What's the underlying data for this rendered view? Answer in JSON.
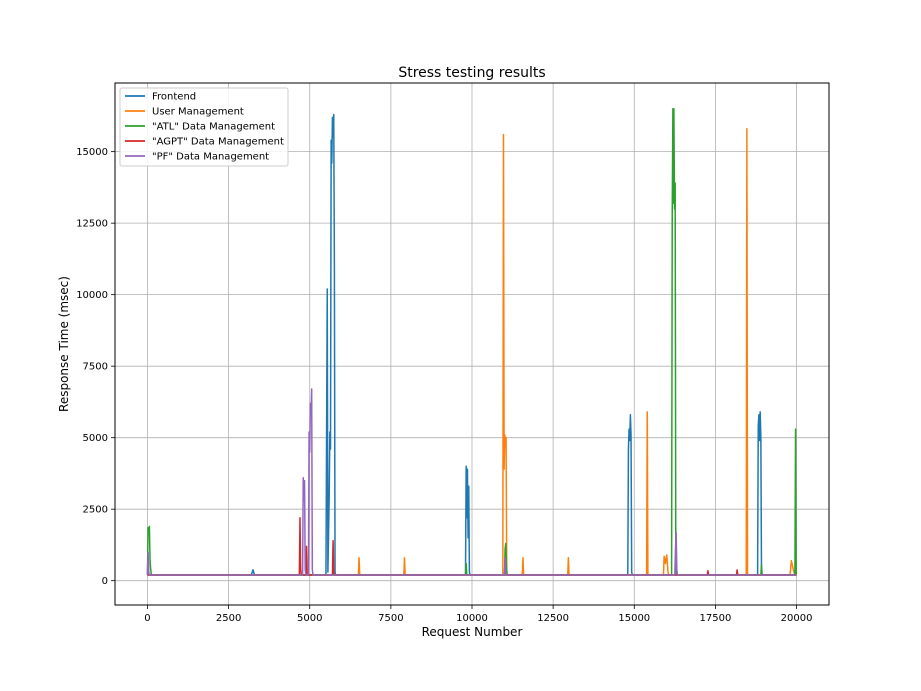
{
  "chart_data": {
    "type": "line",
    "title": "Stress testing results",
    "xlabel": "Request Number",
    "ylabel": "Response Time (msec)",
    "xlim": [
      -1000,
      21000
    ],
    "ylim": [
      -850,
      17400
    ],
    "xticks": [
      0,
      2500,
      5000,
      7500,
      10000,
      12500,
      15000,
      17500,
      20000
    ],
    "yticks": [
      0,
      2500,
      5000,
      7500,
      10000,
      12500,
      15000
    ],
    "grid": true,
    "legend_position": "top-left",
    "baseline": 200,
    "series": [
      {
        "name": "Frontend",
        "color": "#1f77b4",
        "points": [
          [
            0,
            200
          ],
          [
            3200,
            200
          ],
          [
            3250,
            380
          ],
          [
            3300,
            200
          ],
          [
            5500,
            200
          ],
          [
            5540,
            10200
          ],
          [
            5560,
            300
          ],
          [
            5600,
            3000
          ],
          [
            5620,
            5200
          ],
          [
            5640,
            4600
          ],
          [
            5660,
            15400
          ],
          [
            5680,
            14600
          ],
          [
            5700,
            16200
          ],
          [
            5720,
            15500
          ],
          [
            5740,
            16300
          ],
          [
            5760,
            11000
          ],
          [
            5780,
            300
          ],
          [
            5800,
            200
          ],
          [
            9800,
            200
          ],
          [
            9820,
            4000
          ],
          [
            9840,
            2200
          ],
          [
            9860,
            3900
          ],
          [
            9880,
            1500
          ],
          [
            9900,
            3300
          ],
          [
            9920,
            300
          ],
          [
            9940,
            200
          ],
          [
            14800,
            200
          ],
          [
            14820,
            4600
          ],
          [
            14840,
            5300
          ],
          [
            14860,
            4900
          ],
          [
            14880,
            5800
          ],
          [
            14900,
            5100
          ],
          [
            14920,
            300
          ],
          [
            14940,
            200
          ],
          [
            18800,
            200
          ],
          [
            18820,
            5400
          ],
          [
            18840,
            5800
          ],
          [
            18860,
            4900
          ],
          [
            18880,
            5900
          ],
          [
            18900,
            5000
          ],
          [
            18920,
            300
          ],
          [
            18940,
            200
          ],
          [
            20000,
            200
          ]
        ]
      },
      {
        "name": "User Management",
        "color": "#ff7f0e",
        "points": [
          [
            0,
            200
          ],
          [
            6500,
            200
          ],
          [
            6520,
            800
          ],
          [
            6540,
            200
          ],
          [
            7900,
            200
          ],
          [
            7920,
            800
          ],
          [
            7940,
            200
          ],
          [
            10950,
            200
          ],
          [
            10970,
            15600
          ],
          [
            10990,
            3900
          ],
          [
            11010,
            5100
          ],
          [
            11030,
            4700
          ],
          [
            11050,
            5000
          ],
          [
            11070,
            300
          ],
          [
            11090,
            200
          ],
          [
            11550,
            200
          ],
          [
            11570,
            800
          ],
          [
            11590,
            200
          ],
          [
            12950,
            200
          ],
          [
            12970,
            800
          ],
          [
            12990,
            200
          ],
          [
            15380,
            200
          ],
          [
            15400,
            5900
          ],
          [
            15420,
            200
          ],
          [
            15900,
            200
          ],
          [
            15920,
            850
          ],
          [
            15960,
            600
          ],
          [
            16000,
            900
          ],
          [
            16040,
            300
          ],
          [
            16060,
            200
          ],
          [
            18450,
            200
          ],
          [
            18470,
            15800
          ],
          [
            18490,
            200
          ],
          [
            19800,
            200
          ],
          [
            19840,
            700
          ],
          [
            19880,
            500
          ],
          [
            19920,
            300
          ],
          [
            19950,
            200
          ],
          [
            20000,
            200
          ]
        ]
      },
      {
        "name": "\"ATL\" Data Management",
        "color": "#2ca02c",
        "points": [
          [
            0,
            200
          ],
          [
            20,
            1850
          ],
          [
            40,
            1700
          ],
          [
            60,
            1900
          ],
          [
            80,
            700
          ],
          [
            100,
            400
          ],
          [
            120,
            200
          ],
          [
            9800,
            200
          ],
          [
            9820,
            600
          ],
          [
            9840,
            200
          ],
          [
            11000,
            200
          ],
          [
            11020,
            1100
          ],
          [
            11040,
            1300
          ],
          [
            11060,
            600
          ],
          [
            11080,
            200
          ],
          [
            16150,
            200
          ],
          [
            16170,
            12900
          ],
          [
            16190,
            16500
          ],
          [
            16200,
            13200
          ],
          [
            16220,
            16500
          ],
          [
            16240,
            13000
          ],
          [
            16260,
            13900
          ],
          [
            16280,
            400
          ],
          [
            16300,
            200
          ],
          [
            18900,
            200
          ],
          [
            18920,
            550
          ],
          [
            18940,
            200
          ],
          [
            19950,
            200
          ],
          [
            19970,
            5300
          ],
          [
            19990,
            200
          ],
          [
            20000,
            200
          ]
        ]
      },
      {
        "name": "\"AGPT\" Data Management",
        "color": "#d62728",
        "points": [
          [
            0,
            200
          ],
          [
            4680,
            200
          ],
          [
            4700,
            2200
          ],
          [
            4720,
            400
          ],
          [
            4740,
            200
          ],
          [
            4880,
            200
          ],
          [
            4900,
            1200
          ],
          [
            4920,
            200
          ],
          [
            5700,
            200
          ],
          [
            5720,
            1400
          ],
          [
            5740,
            200
          ],
          [
            17250,
            200
          ],
          [
            17270,
            350
          ],
          [
            17290,
            200
          ],
          [
            18150,
            200
          ],
          [
            18170,
            380
          ],
          [
            18190,
            200
          ],
          [
            20000,
            200
          ]
        ]
      },
      {
        "name": "\"PF\" Data Management",
        "color": "#9467bd",
        "points": [
          [
            0,
            200
          ],
          [
            20,
            1000
          ],
          [
            40,
            300
          ],
          [
            60,
            200
          ],
          [
            4780,
            200
          ],
          [
            4800,
            3600
          ],
          [
            4820,
            2800
          ],
          [
            4840,
            3500
          ],
          [
            4860,
            400
          ],
          [
            4880,
            200
          ],
          [
            4960,
            200
          ],
          [
            4980,
            5200
          ],
          [
            5000,
            4500
          ],
          [
            5020,
            6200
          ],
          [
            5040,
            5800
          ],
          [
            5060,
            6700
          ],
          [
            5080,
            400
          ],
          [
            5100,
            200
          ],
          [
            11000,
            200
          ],
          [
            11020,
            800
          ],
          [
            11040,
            200
          ],
          [
            16250,
            200
          ],
          [
            16270,
            1100
          ],
          [
            16290,
            1700
          ],
          [
            16310,
            400
          ],
          [
            16330,
            200
          ],
          [
            20000,
            200
          ]
        ]
      }
    ]
  }
}
